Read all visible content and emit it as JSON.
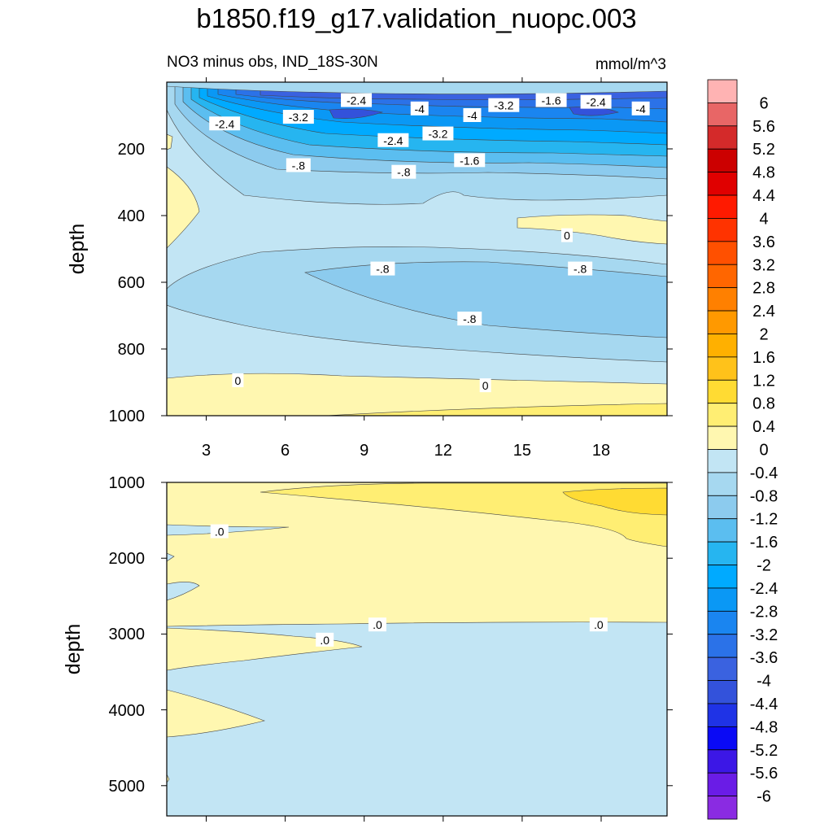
{
  "title": "b1850.f19_g17.validation_nuopc.003",
  "subtitle_left": "NO3 minus obs, IND_18S-30N",
  "subtitle_right": "mmol/m^3",
  "chart_data": [
    {
      "type": "contour",
      "panel": "upper",
      "xlabel": "",
      "ylabel": "depth",
      "xlim": [
        1,
        20
      ],
      "ylim": [
        1000,
        0
      ],
      "xticks": [
        3,
        6,
        9,
        12,
        15,
        18
      ],
      "xtick_labels": [
        "3",
        "6",
        "9",
        "12",
        "15",
        "18"
      ],
      "yticks": [
        200,
        400,
        600,
        800,
        1000
      ],
      "ytick_labels": [
        "200",
        "400",
        "600",
        "800",
        "1000"
      ],
      "contour_labels": [
        {
          "text": "-2.4",
          "x": 8.2,
          "y": 55
        },
        {
          "text": "-4",
          "x": 10.6,
          "y": 80
        },
        {
          "text": "-3.2",
          "x": 13.8,
          "y": 70
        },
        {
          "text": "-1.6",
          "x": 15.6,
          "y": 55
        },
        {
          "text": "-2.4",
          "x": 17.3,
          "y": 60
        },
        {
          "text": "-4",
          "x": 19.0,
          "y": 80
        },
        {
          "text": "-2.4",
          "x": 3.2,
          "y": 125
        },
        {
          "text": "-3.2",
          "x": 6.0,
          "y": 105
        },
        {
          "text": "-4",
          "x": 12.6,
          "y": 100
        },
        {
          "text": "-3.2",
          "x": 11.3,
          "y": 155
        },
        {
          "text": "-2.4",
          "x": 9.6,
          "y": 175
        },
        {
          "text": "-1.6",
          "x": 12.5,
          "y": 235
        },
        {
          "text": "-.8",
          "x": 6.0,
          "y": 250
        },
        {
          "text": "-.8",
          "x": 10.0,
          "y": 270
        },
        {
          "text": "0",
          "x": 16.2,
          "y": 460
        },
        {
          "text": "-.8",
          "x": 9.2,
          "y": 560
        },
        {
          "text": "-.8",
          "x": 16.7,
          "y": 560
        },
        {
          "text": "-.8",
          "x": 12.5,
          "y": 710
        },
        {
          "text": "0",
          "x": 3.7,
          "y": 895
        },
        {
          "text": "0",
          "x": 13.1,
          "y": 910
        }
      ]
    },
    {
      "type": "contour",
      "panel": "lower",
      "xlabel": "",
      "ylabel": "depth",
      "xlim": [
        1,
        20
      ],
      "ylim": [
        5400,
        1000
      ],
      "yticks": [
        1000,
        2000,
        3000,
        4000,
        5000
      ],
      "ytick_labels": [
        "1000",
        "2000",
        "3000",
        "4000",
        "5000"
      ],
      "contour_labels": [
        {
          "text": ".0",
          "x": 3.0,
          "y": 1650
        },
        {
          "text": ".0",
          "x": 9.0,
          "y": 2880
        },
        {
          "text": ".0",
          "x": 7.0,
          "y": 3080
        },
        {
          "text": ".0",
          "x": 17.4,
          "y": 2880
        }
      ]
    }
  ],
  "colorbar": {
    "labels": [
      "6",
      "5.6",
      "5.2",
      "4.8",
      "4.4",
      "4",
      "3.6",
      "3.2",
      "2.8",
      "2.4",
      "2",
      "1.6",
      "1.2",
      "0.8",
      "0.4",
      "0",
      "-0.4",
      "-0.8",
      "-1.2",
      "-1.6",
      "-2",
      "-2.4",
      "-2.8",
      "-3.2",
      "-3.6",
      "-4",
      "-4.4",
      "-4.8",
      "-5.2",
      "-5.6",
      "-6"
    ],
    "colors": [
      "#FFB3B3",
      "#E86666",
      "#D42A2A",
      "#CC0000",
      "#E00000",
      "#FF1A00",
      "#FF3300",
      "#FF5000",
      "#FF6600",
      "#FF8000",
      "#FF9900",
      "#FFB000",
      "#FFC21A",
      "#FFDB33",
      "#FFEE73",
      "#FFF7B0",
      "#C2E5F4",
      "#A6D8F0",
      "#8CCBEE",
      "#5BBEF0",
      "#26B5F0",
      "#00AAFF",
      "#0A98F5",
      "#1A85F0",
      "#2B72E8",
      "#3A62E0",
      "#3352DB",
      "#1F33E6",
      "#0A0AF5",
      "#3C17E6",
      "#6A1CE6",
      "#8A2BE2"
    ]
  }
}
